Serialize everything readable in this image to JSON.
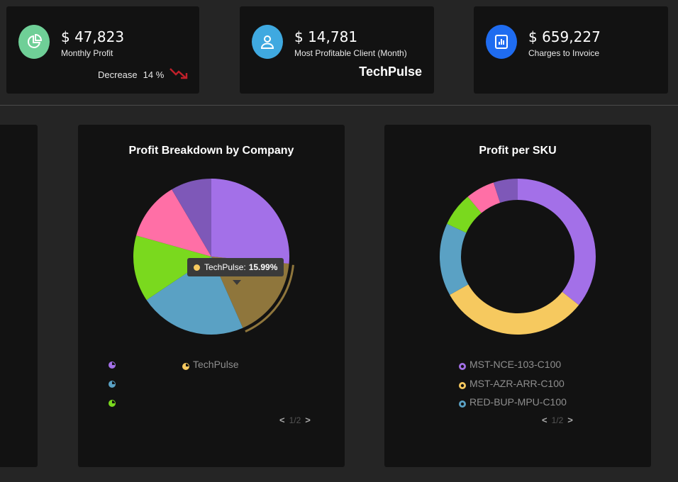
{
  "kpis": [
    {
      "value": "$ 47,823",
      "label": "Monthly Profit",
      "trend_label": "Decrease",
      "trend_value": "14 %",
      "icon": "pie-chart-icon",
      "icon_color": "#6fcf97"
    },
    {
      "value": "$ 14,781",
      "label": "Most Profitable Client (Month)",
      "client": "TechPulse",
      "icon": "user-icon",
      "icon_color": "#3fa9e0"
    },
    {
      "value": "$ 659,227",
      "label": "Charges to Invoice",
      "icon": "report-icon",
      "icon_color": "#1f6cf0"
    }
  ],
  "colors": {
    "decrease": "#c0202a",
    "purple": "#a370e8",
    "yellow": "#f6c95f",
    "blue": "#5aa1c4",
    "green": "#7ad91e",
    "pink": "#ff6fa6",
    "violet": "#7e58b8"
  },
  "profit_by_company": {
    "title": "Profit Breakdown by Company",
    "tooltip": {
      "label": "TechPulse:",
      "value": "15.99%"
    },
    "legend": [
      {
        "label": "",
        "color": "#a370e8"
      },
      {
        "label": "TechPulse",
        "color": "#f6c95f"
      },
      {
        "label": "",
        "color": "#5aa1c4"
      },
      {
        "label": "",
        "color": "#7ad91e"
      }
    ],
    "pager": "1/2"
  },
  "profit_per_sku": {
    "title": "Profit per SKU",
    "legend": [
      {
        "label": "MST-NCE-103-C100",
        "color": "#a370e8"
      },
      {
        "label": "MST-AZR-ARR-C100",
        "color": "#f6c95f"
      },
      {
        "label": "RED-BUP-MPU-C100",
        "color": "#5aa1c4"
      }
    ],
    "pager": "1/2"
  },
  "chart_data": [
    {
      "type": "pie",
      "title": "Profit Breakdown by Company",
      "categories": [
        "",
        "TechPulse",
        "",
        "",
        "",
        ""
      ],
      "values": [
        25.0,
        15.99,
        21.0,
        13.0,
        11.5,
        8.0
      ],
      "colors": [
        "#a370e8",
        "#f6c95f",
        "#5aa1c4",
        "#7ad91e",
        "#ff6fa6",
        "#7e58b8"
      ],
      "highlighted": "TechPulse"
    },
    {
      "type": "pie",
      "subtype": "donut",
      "title": "Profit per SKU",
      "categories": [
        "MST-NCE-103-C100",
        "MST-AZR-ARR-C100",
        "RED-BUP-MPU-C100",
        "",
        "",
        ""
      ],
      "values": [
        35.5,
        31.0,
        15.0,
        7.0,
        6.0,
        5.0
      ],
      "colors": [
        "#a370e8",
        "#f6c95f",
        "#5aa1c4",
        "#7ad91e",
        "#ff6fa6",
        "#7e58b8"
      ]
    }
  ]
}
